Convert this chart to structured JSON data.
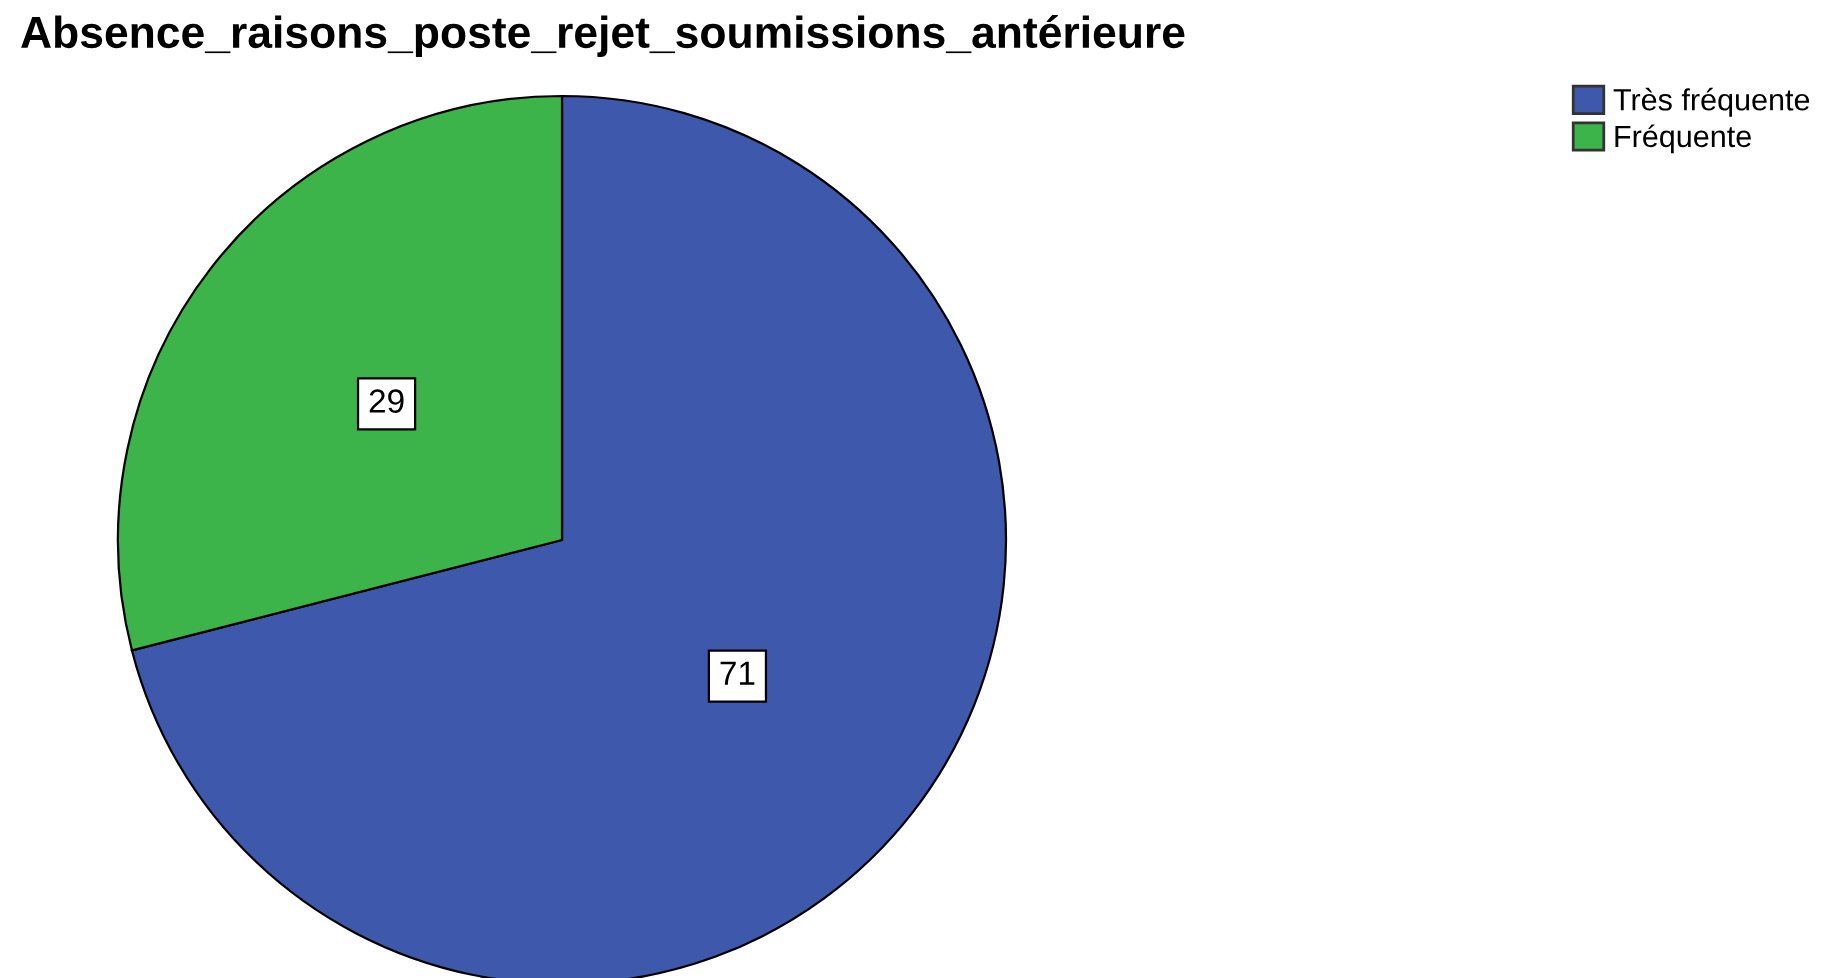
{
  "chart_data": {
    "type": "pie",
    "title": "Absence_raisons_poste_rejet_soumissions_antérieure",
    "categories": [
      "Très fréquente",
      "Fréquente"
    ],
    "values": [
      71,
      29
    ],
    "colors": [
      "#3e58ac",
      "#3cb44a"
    ],
    "data_labels": true,
    "legend": "top right"
  }
}
